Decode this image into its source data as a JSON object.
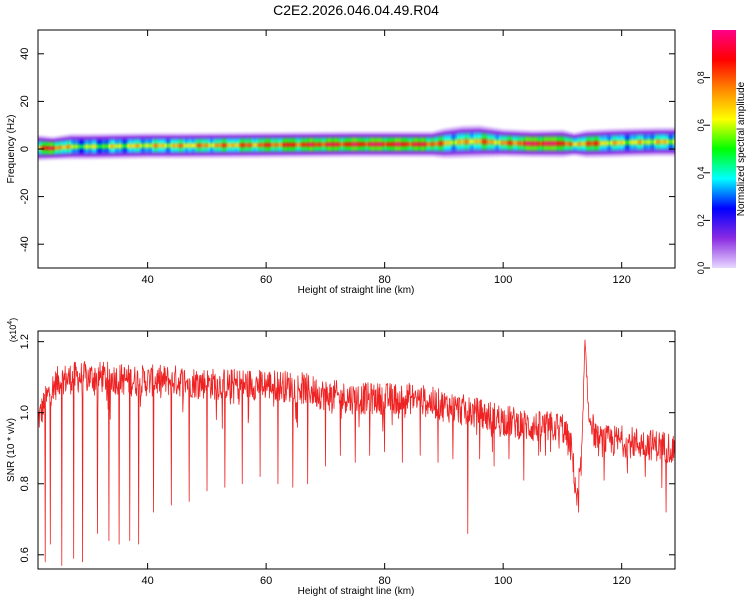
{
  "figure_title": "C2E2.2026.046.04.49.R04",
  "chart_data": [
    {
      "type": "heatmap",
      "title": "C2E2.2026.046.04.49.R04",
      "xlabel": "Height of straight line (km)",
      "ylabel": "Frequency (Hz)",
      "xlim": [
        21.5,
        129
      ],
      "ylim": [
        -50,
        50
      ],
      "xticks": [
        40,
        60,
        80,
        100,
        120
      ],
      "yticks": [
        -40,
        -20,
        0,
        20,
        40
      ],
      "colorbar": {
        "label": "Normalized spectral amplitude",
        "range": [
          0,
          1
        ],
        "ticks": [
          0.0,
          0.2,
          0.4,
          0.6,
          0.8
        ],
        "colors": [
          "#e8d8ff",
          "#8a2be2",
          "#0000ff",
          "#00ffff",
          "#00ff00",
          "#ffff00",
          "#ff8800",
          "#ff0000",
          "#ff0088"
        ]
      },
      "band": {
        "x": [
          21.5,
          24,
          27,
          30,
          35,
          40,
          45,
          50,
          55,
          60,
          65,
          70,
          75,
          80,
          85,
          88,
          90,
          93,
          96,
          100,
          105,
          110,
          112,
          114,
          118,
          122,
          126,
          129
        ],
        "center_hz": [
          0.5,
          0.3,
          1.0,
          1.0,
          1.2,
          1.4,
          1.4,
          1.5,
          1.6,
          1.7,
          1.8,
          1.9,
          2.0,
          2.0,
          2.0,
          2.0,
          2.4,
          3.0,
          3.2,
          2.6,
          2.2,
          2.3,
          2.0,
          2.2,
          2.5,
          2.8,
          3.0,
          3.0
        ],
        "halfwidth_hz": [
          2.5,
          2.0,
          2.5,
          2.5,
          2.5,
          2.5,
          2.5,
          2.5,
          2.5,
          2.5,
          2.5,
          2.5,
          2.5,
          2.5,
          2.5,
          2.5,
          3.5,
          4.0,
          4.0,
          3.0,
          2.8,
          3.0,
          2.0,
          3.0,
          3.2,
          3.2,
          3.2,
          3.2
        ],
        "peak_amplitude": [
          0.75,
          0.9,
          0.6,
          0.55,
          0.6,
          0.65,
          0.68,
          0.72,
          0.75,
          0.8,
          0.85,
          0.88,
          0.9,
          0.92,
          0.9,
          0.85,
          0.7,
          0.65,
          0.75,
          0.7,
          0.95,
          0.95,
          0.6,
          0.85,
          0.65,
          0.62,
          0.65,
          0.65
        ]
      }
    },
    {
      "type": "line",
      "xlabel": "Height of straight line (km)",
      "ylabel": "SNR (10 * v/v)",
      "y_multiplier": "(x10^4)",
      "xlim": [
        21.5,
        129
      ],
      "ylim": [
        0.56,
        1.23
      ],
      "xticks": [
        40,
        60,
        80,
        100,
        120
      ],
      "yticks": [
        0.6,
        0.8,
        1.0,
        1.2
      ],
      "color": "#ee2222",
      "trend": {
        "x": [
          21.5,
          22.5,
          23.5,
          25,
          28,
          32,
          38,
          45,
          52,
          60,
          66,
          70,
          75,
          80,
          85,
          90,
          95,
          100,
          105,
          110,
          111.5,
          112.5,
          113.3,
          113.8,
          114.5,
          116,
          120,
          125,
          129
        ],
        "y": [
          0.98,
          1.02,
          1.06,
          1.09,
          1.1,
          1.1,
          1.09,
          1.09,
          1.08,
          1.08,
          1.07,
          1.05,
          1.04,
          1.04,
          1.04,
          1.02,
          1.0,
          0.98,
          0.96,
          0.96,
          0.9,
          0.75,
          0.9,
          1.2,
          0.98,
          0.92,
          0.92,
          0.91,
          0.9
        ]
      },
      "dips": [
        {
          "x": 22.7,
          "y": 0.58
        },
        {
          "x": 23.6,
          "y": 0.63
        },
        {
          "x": 25.5,
          "y": 0.57
        },
        {
          "x": 27.5,
          "y": 0.59
        },
        {
          "x": 29.0,
          "y": 0.58
        },
        {
          "x": 31.5,
          "y": 0.66
        },
        {
          "x": 33.5,
          "y": 0.64
        },
        {
          "x": 35.2,
          "y": 0.63
        },
        {
          "x": 37.0,
          "y": 0.64
        },
        {
          "x": 38.5,
          "y": 0.63
        },
        {
          "x": 41.0,
          "y": 0.72
        },
        {
          "x": 44.0,
          "y": 0.74
        },
        {
          "x": 47.0,
          "y": 0.75
        },
        {
          "x": 50.0,
          "y": 0.78
        },
        {
          "x": 53.0,
          "y": 0.79
        },
        {
          "x": 56.0,
          "y": 0.8
        },
        {
          "x": 59.0,
          "y": 0.82
        },
        {
          "x": 62.0,
          "y": 0.8
        },
        {
          "x": 64.5,
          "y": 0.79
        },
        {
          "x": 67.0,
          "y": 0.8
        },
        {
          "x": 70.0,
          "y": 0.85
        },
        {
          "x": 72.5,
          "y": 0.88
        },
        {
          "x": 75.0,
          "y": 0.86
        },
        {
          "x": 77.5,
          "y": 0.88
        },
        {
          "x": 80.0,
          "y": 0.89
        },
        {
          "x": 83.0,
          "y": 0.86
        },
        {
          "x": 86.0,
          "y": 0.88
        },
        {
          "x": 89.0,
          "y": 0.86
        },
        {
          "x": 91.5,
          "y": 0.87
        },
        {
          "x": 94.0,
          "y": 0.66
        },
        {
          "x": 96.0,
          "y": 0.87
        },
        {
          "x": 98.5,
          "y": 0.85
        },
        {
          "x": 101.0,
          "y": 0.87
        },
        {
          "x": 103.5,
          "y": 0.81
        },
        {
          "x": 106.0,
          "y": 0.88
        },
        {
          "x": 108.0,
          "y": 0.89
        },
        {
          "x": 117.0,
          "y": 0.81
        },
        {
          "x": 121.0,
          "y": 0.83
        },
        {
          "x": 124.0,
          "y": 0.82
        },
        {
          "x": 127.5,
          "y": 0.72
        }
      ]
    }
  ]
}
